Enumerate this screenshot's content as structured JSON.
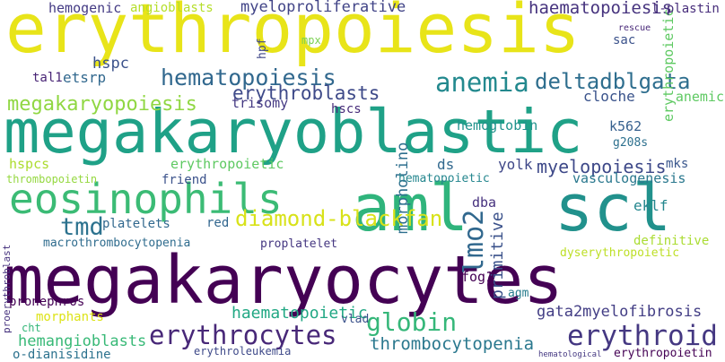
{
  "word_cloud": {
    "words": [
      {
        "text": "erythropoiesis",
        "color": "#e8e419"
      },
      {
        "text": "megakaryoblastic",
        "color": "#1fa187"
      },
      {
        "text": "megakaryocytes",
        "color": "#440154"
      },
      {
        "text": "aml",
        "color": "#2fb47c"
      },
      {
        "text": "scl",
        "color": "#21918c"
      },
      {
        "text": "eosinophils",
        "color": "#3bbb75"
      },
      {
        "text": "diamond-blackfan",
        "color": "#d8e219"
      },
      {
        "text": "hematopoiesis",
        "color": "#31688e"
      },
      {
        "text": "anemia",
        "color": "#23898e"
      },
      {
        "text": "deltadblgata",
        "color": "#2e6e8e"
      },
      {
        "text": "megakaryopoiesis",
        "color": "#90d743"
      },
      {
        "text": "erythroblasts",
        "color": "#3e4a89"
      },
      {
        "text": "tmd",
        "color": "#2c728e"
      },
      {
        "text": "globin",
        "color": "#35b779"
      },
      {
        "text": "erythrocytes",
        "color": "#482878"
      },
      {
        "text": "thrombocytopenia",
        "color": "#2a788e"
      },
      {
        "text": "erythroid",
        "color": "#453882"
      },
      {
        "text": "lmo2",
        "color": "#31688e"
      },
      {
        "text": "primitive",
        "color": "#3b528b"
      },
      {
        "text": "haematopoietic",
        "color": "#22a884"
      },
      {
        "text": "hemangioblasts",
        "color": "#38b977"
      },
      {
        "text": "myelopoiesis",
        "color": "#3e4989"
      },
      {
        "text": "gata2myelofibrosis",
        "color": "#433e85"
      },
      {
        "text": "haematopoiesis",
        "color": "#46337e"
      },
      {
        "text": "hemogenic",
        "color": "#443b84"
      },
      {
        "text": "angioblasts",
        "color": "#b5de2b"
      },
      {
        "text": "myeloproliferative",
        "color": "#414487"
      },
      {
        "text": "l-plastin",
        "color": "#472d7b"
      },
      {
        "text": "hspc",
        "color": "#3b528b"
      },
      {
        "text": "etsrp",
        "color": "#31688e"
      },
      {
        "text": "tal1",
        "color": "#482475"
      },
      {
        "text": "trisomy",
        "color": "#443983"
      },
      {
        "text": "hscs",
        "color": "#472c7a"
      },
      {
        "text": "cloche",
        "color": "#3a538b"
      },
      {
        "text": "hemoglobin",
        "color": "#20928c"
      },
      {
        "text": "anemic",
        "color": "#5ec962"
      },
      {
        "text": "k562",
        "color": "#355f8d"
      },
      {
        "text": "g208s",
        "color": "#2d708e"
      },
      {
        "text": "mast",
        "color": "#3e4989"
      },
      {
        "text": "hspcs",
        "color": "#addc30"
      },
      {
        "text": "erythropoietic",
        "color": "#5ec962"
      },
      {
        "text": "thrombopoietin",
        "color": "#95d840"
      },
      {
        "text": "friend",
        "color": "#3b528b"
      },
      {
        "text": "morpholino",
        "color": "#2e6f8e"
      },
      {
        "text": "ds",
        "color": "#31688e"
      },
      {
        "text": "yolk",
        "color": "#3f4788"
      },
      {
        "text": "mks",
        "color": "#39568c"
      },
      {
        "text": "vasculogenesis",
        "color": "#2a788e"
      },
      {
        "text": "hematopoietic",
        "color": "#24868e"
      },
      {
        "text": "eklf",
        "color": "#24878e"
      },
      {
        "text": "dba",
        "color": "#46317e"
      },
      {
        "text": "platelets",
        "color": "#31688e"
      },
      {
        "text": "red",
        "color": "#31668e"
      },
      {
        "text": "macrothrombocytopenia",
        "color": "#2f6c8e"
      },
      {
        "text": "proplatelet",
        "color": "#453781"
      },
      {
        "text": "definitive",
        "color": "#aadc32"
      },
      {
        "text": "dyserythropoietic",
        "color": "#bddf26"
      },
      {
        "text": "fog1",
        "color": "#440154"
      },
      {
        "text": "agm",
        "color": "#287d8e"
      },
      {
        "text": "morphants",
        "color": "#dde318"
      },
      {
        "text": "vlad",
        "color": "#3b528b"
      },
      {
        "text": "o-dianisidine",
        "color": "#2c728e"
      },
      {
        "text": "erythroleukemia",
        "color": "#3e4989"
      },
      {
        "text": "erythropoietin",
        "color": "#440154"
      },
      {
        "text": "pronephros",
        "color": "#440154"
      },
      {
        "text": "cht",
        "color": "#35b779"
      },
      {
        "text": "proerythroblast",
        "color": "#46327e"
      },
      {
        "text": "hpf",
        "color": "#3f4788"
      },
      {
        "text": "mpx",
        "color": "#7ad151"
      },
      {
        "text": "sac",
        "color": "#3b528b"
      },
      {
        "text": "rescue",
        "color": "#482878"
      },
      {
        "text": "hematological",
        "color": "#453882"
      }
    ]
  }
}
